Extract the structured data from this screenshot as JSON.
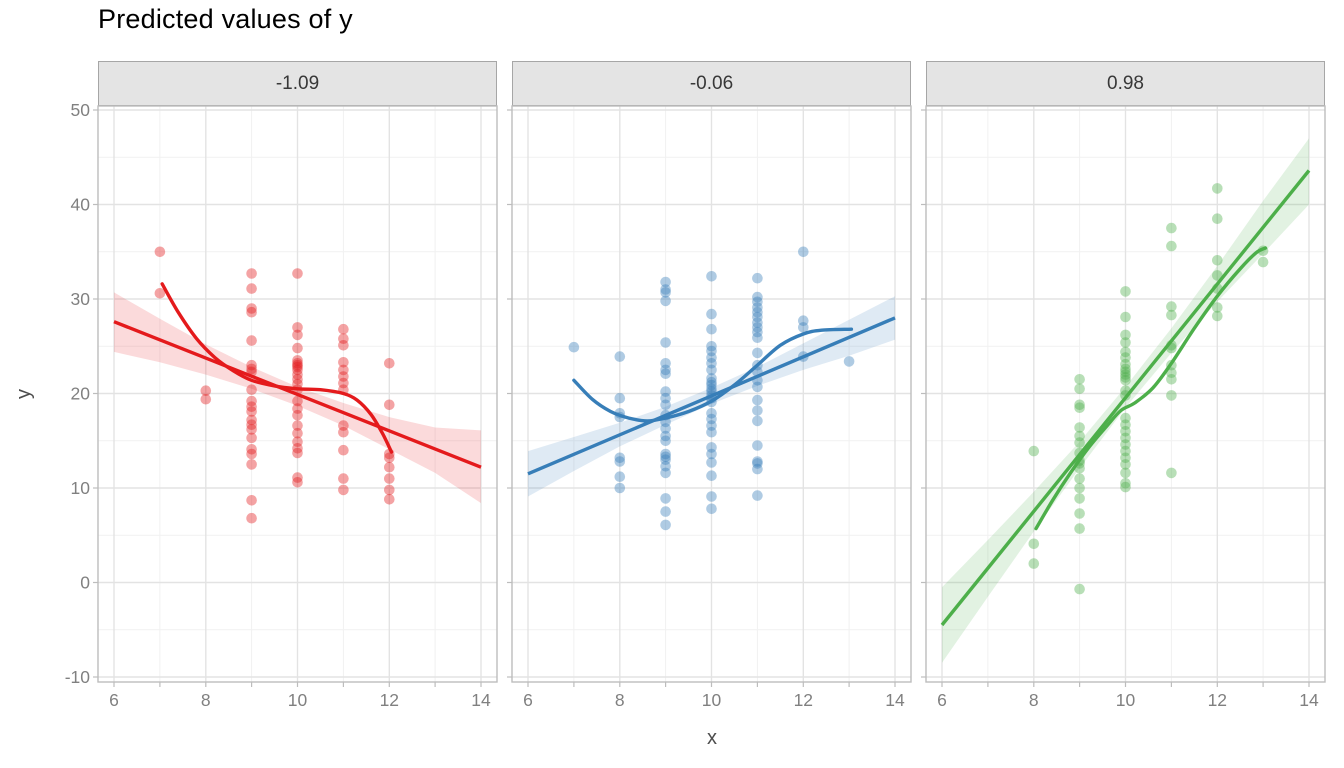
{
  "title": "Predicted values of y",
  "x_axis": {
    "label": "x",
    "major_ticks": [
      6,
      8,
      10,
      12,
      14
    ],
    "minor_ticks": [
      7,
      9,
      11,
      13
    ],
    "range": [
      6,
      14
    ]
  },
  "y_axis": {
    "label": "y",
    "major_ticks": [
      50,
      40,
      30,
      20,
      10,
      0,
      -10
    ],
    "minor_ticks": [
      45,
      35,
      25,
      15,
      5,
      -5
    ],
    "range": [
      -10,
      50
    ]
  },
  "theme": {
    "background": "#FFFFFF",
    "grid_major": "#E3E3E3",
    "grid_minor": "#F1F1F1",
    "panel_border": "#BDBDBD",
    "strip_bg": "#E4E4E4",
    "strip_border": "#A6A6A6",
    "strip_text": "#383838",
    "tick_mark_color": "#BDBDBD",
    "tick_label_color": "#808080",
    "axis_title_color": "#4D4D4D",
    "title_color": "#000000",
    "point_opacity": 0.4,
    "ribbon_opacity": 0.16
  },
  "chart_data": {
    "type": "scatter",
    "title": "Predicted values of y",
    "xlabel": "x",
    "ylabel": "y",
    "xlim": [
      6,
      14
    ],
    "ylim": [
      -10,
      50
    ],
    "legend": "none",
    "facet_values": [
      "-1.09",
      "-0.06",
      "0.98"
    ],
    "facets": [
      {
        "label": "-1.09",
        "color": "#E41A1C",
        "points": [
          [
            7,
            35
          ],
          [
            7,
            30.6
          ],
          [
            8,
            20.3
          ],
          [
            8,
            19.4
          ],
          [
            9,
            32.7
          ],
          [
            9,
            31.1
          ],
          [
            9,
            29
          ],
          [
            9,
            28.6
          ],
          [
            9,
            25.6
          ],
          [
            9,
            23
          ],
          [
            9,
            22.6
          ],
          [
            9,
            22.3
          ],
          [
            9,
            20.4
          ],
          [
            9,
            19.2
          ],
          [
            9,
            18.6
          ],
          [
            9,
            18.1
          ],
          [
            9,
            17.2
          ],
          [
            9,
            16.7
          ],
          [
            9,
            16.2
          ],
          [
            9,
            15.3
          ],
          [
            9,
            14.1
          ],
          [
            9,
            13.6
          ],
          [
            9,
            12.5
          ],
          [
            9,
            8.7
          ],
          [
            9,
            6.8
          ],
          [
            10,
            32.7
          ],
          [
            10,
            27
          ],
          [
            10,
            26.2
          ],
          [
            10,
            24.8
          ],
          [
            10,
            23.5
          ],
          [
            10,
            23.2
          ],
          [
            10,
            23
          ],
          [
            10,
            22.8
          ],
          [
            10,
            22.5
          ],
          [
            10,
            22
          ],
          [
            10,
            21.5
          ],
          [
            10,
            21
          ],
          [
            10,
            20.4
          ],
          [
            10,
            19.2
          ],
          [
            10,
            18.4
          ],
          [
            10,
            17.7
          ],
          [
            10,
            16.6
          ],
          [
            10,
            15.8
          ],
          [
            10,
            14.9
          ],
          [
            10,
            14.2
          ],
          [
            10,
            13.7
          ],
          [
            10,
            11.1
          ],
          [
            10,
            10.6
          ],
          [
            11,
            26.8
          ],
          [
            11,
            25.8
          ],
          [
            11,
            25.1
          ],
          [
            11,
            23.3
          ],
          [
            11,
            22.5
          ],
          [
            11,
            21.8
          ],
          [
            11,
            21.1
          ],
          [
            11,
            20.4
          ],
          [
            11,
            16.6
          ],
          [
            11,
            15.9
          ],
          [
            11,
            14
          ],
          [
            11,
            11
          ],
          [
            11,
            9.8
          ],
          [
            12,
            23.2
          ],
          [
            12,
            18.8
          ],
          [
            12,
            13.6
          ],
          [
            12,
            13.2
          ],
          [
            12,
            12.2
          ],
          [
            12,
            11
          ],
          [
            12,
            9.8
          ],
          [
            12,
            8.8
          ]
        ],
        "regression_line": {
          "x": [
            6,
            14
          ],
          "y": [
            27.6,
            12.2
          ]
        },
        "ribbon": [
          [
            6,
            24.4,
            30.7
          ],
          [
            7,
            23.3,
            27.9
          ],
          [
            8,
            22,
            25.2
          ],
          [
            9,
            20.5,
            22.8
          ],
          [
            10,
            18.7,
            20.7
          ],
          [
            11,
            16.6,
            19
          ],
          [
            12,
            14.1,
            17.5
          ],
          [
            13,
            11.6,
            16.4
          ],
          [
            14,
            8.4,
            16.1
          ]
        ],
        "loess": [
          [
            7.05,
            31.6
          ],
          [
            7.4,
            28.6
          ],
          [
            7.8,
            25.8
          ],
          [
            8.2,
            23.8
          ],
          [
            8.6,
            22.4
          ],
          [
            9,
            21.4
          ],
          [
            9.5,
            20.8
          ],
          [
            10,
            20.5
          ],
          [
            10.5,
            20.4
          ],
          [
            11,
            20
          ],
          [
            11.3,
            19.3
          ],
          [
            11.6,
            17.8
          ],
          [
            11.85,
            15.8
          ],
          [
            12.05,
            13.8
          ]
        ]
      },
      {
        "label": "-0.06",
        "color": "#377EB8",
        "points": [
          [
            7,
            24.9
          ],
          [
            8,
            23.9
          ],
          [
            8,
            19.5
          ],
          [
            8,
            17.9
          ],
          [
            8,
            17.5
          ],
          [
            8,
            13.2
          ],
          [
            8,
            12.8
          ],
          [
            8,
            11.2
          ],
          [
            8,
            10
          ],
          [
            9,
            31.8
          ],
          [
            9,
            31
          ],
          [
            9,
            30.7
          ],
          [
            9,
            29.8
          ],
          [
            9,
            25.4
          ],
          [
            9,
            23.2
          ],
          [
            9,
            22.5
          ],
          [
            9,
            22.1
          ],
          [
            9,
            20.2
          ],
          [
            9,
            19.5
          ],
          [
            9,
            18.8
          ],
          [
            9,
            17.7
          ],
          [
            9,
            17
          ],
          [
            9,
            16.3
          ],
          [
            9,
            15.5
          ],
          [
            9,
            15
          ],
          [
            9,
            13.6
          ],
          [
            9,
            13.3
          ],
          [
            9,
            13
          ],
          [
            9,
            12.3
          ],
          [
            9,
            11.6
          ],
          [
            9,
            8.9
          ],
          [
            9,
            7.5
          ],
          [
            9,
            6.1
          ],
          [
            10,
            32.4
          ],
          [
            10,
            28.4
          ],
          [
            10,
            26.8
          ],
          [
            10,
            25
          ],
          [
            10,
            24.5
          ],
          [
            10,
            23.8
          ],
          [
            10,
            23.2
          ],
          [
            10,
            22.5
          ],
          [
            10,
            21.6
          ],
          [
            10,
            21.2
          ],
          [
            10,
            20.9
          ],
          [
            10,
            20.5
          ],
          [
            10,
            20.2
          ],
          [
            10,
            19.8
          ],
          [
            10,
            19.5
          ],
          [
            10,
            19.1
          ],
          [
            10,
            17.9
          ],
          [
            10,
            17.3
          ],
          [
            10,
            16.6
          ],
          [
            10,
            15.9
          ],
          [
            10,
            14.3
          ],
          [
            10,
            13.6
          ],
          [
            10,
            12.7
          ],
          [
            10,
            11.3
          ],
          [
            10,
            9.1
          ],
          [
            10,
            7.8
          ],
          [
            11,
            32.2
          ],
          [
            11,
            30.2
          ],
          [
            11,
            29.7
          ],
          [
            11,
            29.1
          ],
          [
            11,
            28.6
          ],
          [
            11,
            28.1
          ],
          [
            11,
            27.5
          ],
          [
            11,
            27
          ],
          [
            11,
            26.5
          ],
          [
            11,
            25.9
          ],
          [
            11,
            24.3
          ],
          [
            11,
            23
          ],
          [
            11,
            22.3
          ],
          [
            11,
            21.4
          ],
          [
            11,
            20.7
          ],
          [
            11,
            19.3
          ],
          [
            11,
            18.2
          ],
          [
            11,
            17.1
          ],
          [
            11,
            14.5
          ],
          [
            11,
            12.8
          ],
          [
            11,
            12.6
          ],
          [
            11,
            12
          ],
          [
            11,
            9.2
          ],
          [
            12,
            35
          ],
          [
            12,
            27.7
          ],
          [
            12,
            27
          ],
          [
            12,
            23.9
          ],
          [
            13,
            23.4
          ]
        ],
        "regression_line": {
          "x": [
            6,
            14
          ],
          "y": [
            11.5,
            28
          ]
        },
        "ribbon": [
          [
            6,
            9.1,
            13.9
          ],
          [
            7,
            11.8,
            15.4
          ],
          [
            8,
            14.4,
            16.9
          ],
          [
            9,
            16.7,
            18.6
          ],
          [
            10,
            18.9,
            20.6
          ],
          [
            11,
            20.8,
            22.8
          ],
          [
            12,
            22.5,
            25.3
          ],
          [
            13,
            24,
            27.8
          ],
          [
            14,
            25.7,
            30.3
          ]
        ],
        "loess": [
          [
            7,
            21.4
          ],
          [
            7.4,
            19.4
          ],
          [
            7.8,
            18.1
          ],
          [
            8.2,
            17.4
          ],
          [
            8.6,
            17.1
          ],
          [
            9,
            17.4
          ],
          [
            9.5,
            18.1
          ],
          [
            10,
            19.2
          ],
          [
            10.5,
            20.9
          ],
          [
            11,
            23
          ],
          [
            11.5,
            25.1
          ],
          [
            12,
            26.3
          ],
          [
            12.4,
            26.7
          ],
          [
            13.05,
            26.8
          ]
        ]
      },
      {
        "label": "0.98",
        "color": "#4DAF4A",
        "points": [
          [
            8,
            13.9
          ],
          [
            8,
            4.1
          ],
          [
            8,
            2
          ],
          [
            9,
            21.5
          ],
          [
            9,
            20.5
          ],
          [
            9,
            18.8
          ],
          [
            9,
            18.5
          ],
          [
            9,
            16.4
          ],
          [
            9,
            15.5
          ],
          [
            9,
            14.8
          ],
          [
            9,
            13.7
          ],
          [
            9,
            12.9
          ],
          [
            9,
            12.6
          ],
          [
            9,
            12.1
          ],
          [
            9,
            11
          ],
          [
            9,
            10
          ],
          [
            9,
            8.9
          ],
          [
            9,
            7.3
          ],
          [
            9,
            5.7
          ],
          [
            9,
            -0.7
          ],
          [
            10,
            30.8
          ],
          [
            10,
            28.1
          ],
          [
            10,
            26.2
          ],
          [
            10,
            25.4
          ],
          [
            10,
            24.4
          ],
          [
            10,
            23.8
          ],
          [
            10,
            23.1
          ],
          [
            10,
            22.6
          ],
          [
            10,
            22.3
          ],
          [
            10,
            22
          ],
          [
            10,
            21.7
          ],
          [
            10,
            21.4
          ],
          [
            10,
            20.3
          ],
          [
            10,
            19.8
          ],
          [
            10,
            17.4
          ],
          [
            10,
            16.7
          ],
          [
            10,
            16
          ],
          [
            10,
            15.3
          ],
          [
            10,
            14.6
          ],
          [
            10,
            13.9
          ],
          [
            10,
            13.2
          ],
          [
            10,
            12.5
          ],
          [
            10,
            11.6
          ],
          [
            10,
            10.5
          ],
          [
            10,
            10.1
          ],
          [
            11,
            37.5
          ],
          [
            11,
            35.6
          ],
          [
            11,
            29.2
          ],
          [
            11,
            28.3
          ],
          [
            11,
            25.1
          ],
          [
            11,
            24.8
          ],
          [
            11,
            23
          ],
          [
            11,
            22.2
          ],
          [
            11,
            21.5
          ],
          [
            11,
            19.8
          ],
          [
            11,
            11.6
          ],
          [
            12,
            41.7
          ],
          [
            12,
            38.5
          ],
          [
            12,
            34.1
          ],
          [
            12,
            32.5
          ],
          [
            12,
            31.1
          ],
          [
            12,
            29.1
          ],
          [
            12,
            28.2
          ],
          [
            13,
            35.1
          ],
          [
            13,
            33.9
          ]
        ],
        "regression_line": {
          "x": [
            6,
            14
          ],
          "y": [
            -4.5,
            43.6
          ]
        },
        "ribbon": [
          [
            6,
            -8.5,
            -0.5
          ],
          [
            7,
            -1.5,
            4.5
          ],
          [
            8,
            5.4,
            9.6
          ],
          [
            9,
            12.1,
            14.9
          ],
          [
            10,
            18.5,
            20.7
          ],
          [
            11,
            24.3,
            26.9
          ],
          [
            12,
            29.7,
            33.5
          ],
          [
            13,
            34.8,
            40.4
          ],
          [
            14,
            40,
            47
          ]
        ],
        "loess": [
          [
            8.05,
            5.7
          ],
          [
            8.4,
            8.6
          ],
          [
            8.8,
            11.6
          ],
          [
            9.2,
            14.3
          ],
          [
            9.6,
            16.6
          ],
          [
            9.9,
            18.2
          ],
          [
            10.2,
            19
          ],
          [
            10.6,
            20.6
          ],
          [
            11,
            23.2
          ],
          [
            11.5,
            26.9
          ],
          [
            12,
            30.3
          ],
          [
            12.5,
            33.2
          ],
          [
            12.85,
            34.9
          ],
          [
            13.05,
            35.4
          ]
        ]
      }
    ]
  }
}
